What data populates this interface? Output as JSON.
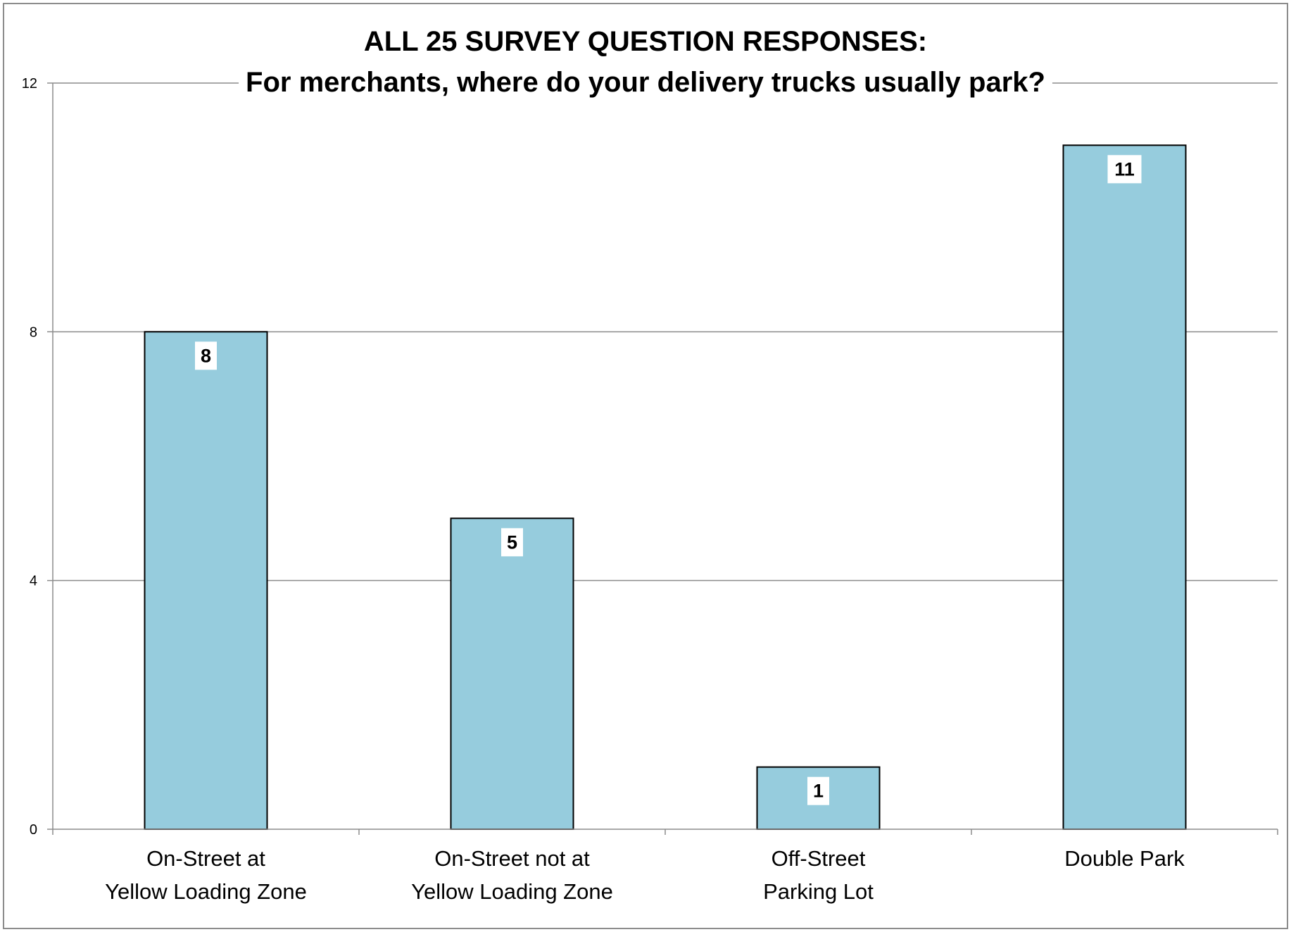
{
  "chart_data": {
    "type": "bar",
    "title": "ALL 25 SURVEY QUESTION RESPONSES:",
    "subtitle": "For merchants, where do your delivery trucks usually park?",
    "categories": [
      [
        "On-Street at",
        "Yellow Loading Zone"
      ],
      [
        "On-Street not at",
        "Yellow Loading Zone"
      ],
      [
        "Off-Street",
        "Parking Lot"
      ],
      [
        "Double Park"
      ]
    ],
    "values": [
      8,
      5,
      1,
      11
    ],
    "data_labels": [
      "8",
      "5",
      "1",
      "11"
    ],
    "ylim": [
      0,
      12
    ],
    "yticks": [
      0,
      4,
      8,
      12
    ],
    "ytick_labels": [
      "0",
      "4",
      "8",
      "12"
    ],
    "xlabel": "",
    "ylabel": "",
    "grid": true,
    "legend": "none",
    "colors": {
      "bar_fill": "#96ccdd",
      "bar_stroke": "#000000",
      "grid": "#8c8c8c",
      "axis": "#8c8c8c",
      "label_box": "#ffffff"
    }
  }
}
